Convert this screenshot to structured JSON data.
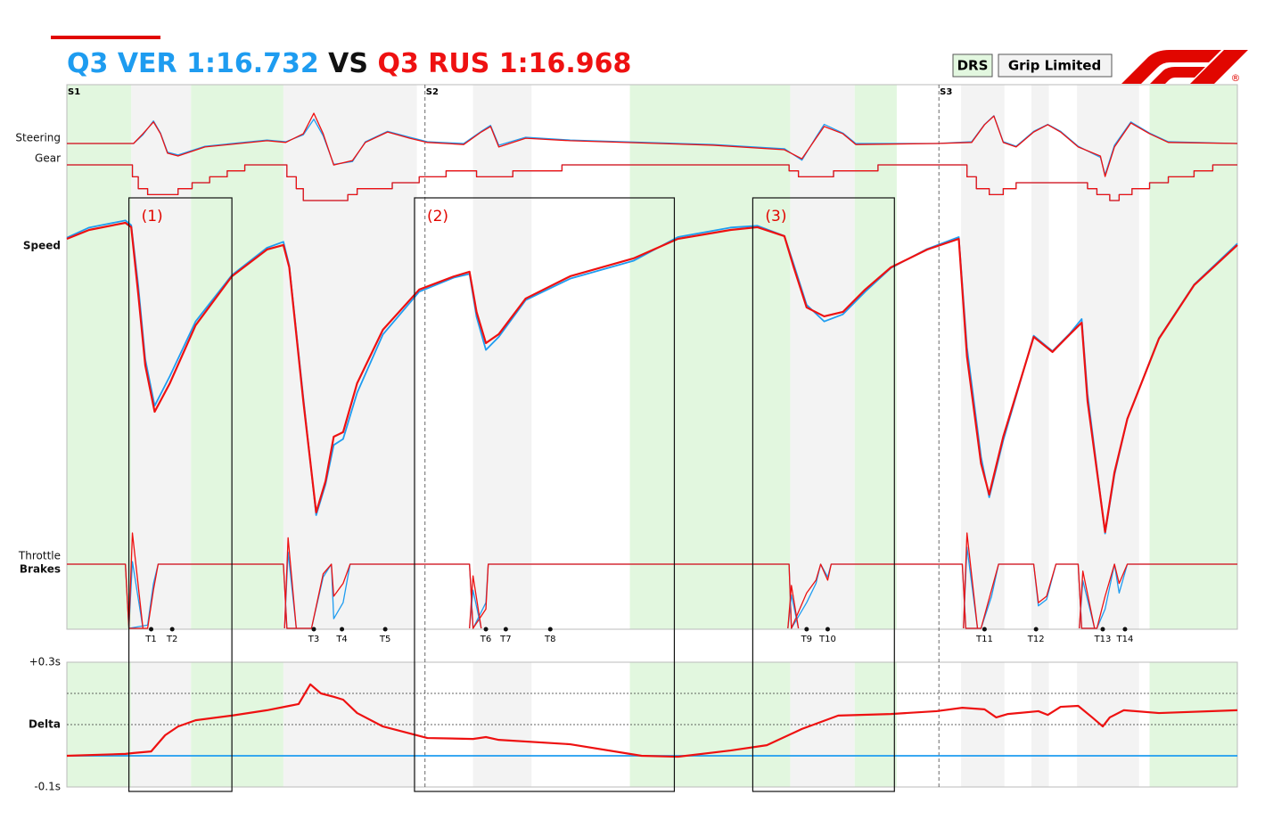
{
  "header": {
    "title": [
      {
        "text": "Q3 VER 1:16.732",
        "color": "#1e9cf0"
      },
      {
        "text": "VS",
        "color": "#111111"
      },
      {
        "text": "Q3 RUS 1:16.968",
        "color": "#ee1111"
      }
    ],
    "legend": [
      {
        "label": "DRS",
        "color": "#e2f7df",
        "zones": [
          [
            0,
            5.5
          ],
          [
            10.6,
            18.5
          ],
          [
            48.1,
            61.8
          ],
          [
            67.3,
            70.9
          ],
          [
            92.5,
            100
          ]
        ]
      },
      {
        "label": "Grip Limited",
        "color": "#f3f3f3",
        "zones": [
          [
            5.5,
            10.6
          ],
          [
            18.5,
            29.9
          ],
          [
            34.7,
            39.7
          ],
          [
            61.8,
            67.3
          ],
          [
            76.4,
            80.1
          ],
          [
            82.4,
            83.9
          ],
          [
            86.3,
            91.6
          ]
        ]
      }
    ],
    "logo_mark": "®"
  },
  "track": {
    "xlim": [
      0,
      100
    ],
    "sectors": [
      {
        "label": "S1",
        "x": 0
      },
      {
        "label": "S2",
        "x": 30.6
      },
      {
        "label": "S3",
        "x": 74.5
      }
    ],
    "turns": [
      {
        "label": "T1",
        "x": 7.2
      },
      {
        "label": "T2",
        "x": 9.0
      },
      {
        "label": "T3",
        "x": 21.1
      },
      {
        "label": "T4",
        "x": 23.5
      },
      {
        "label": "T5",
        "x": 27.2
      },
      {
        "label": "T6",
        "x": 35.8
      },
      {
        "label": "T7",
        "x": 37.5
      },
      {
        "label": "T8",
        "x": 41.3
      },
      {
        "label": "T9",
        "x": 63.2
      },
      {
        "label": "T10",
        "x": 65.0
      },
      {
        "label": "T11",
        "x": 78.4
      },
      {
        "label": "T12",
        "x": 82.8
      },
      {
        "label": "T13",
        "x": 88.5
      },
      {
        "label": "T14",
        "x": 90.4
      }
    ],
    "boxes": [
      {
        "label": "(1)",
        "start": 5.3,
        "end": 14.1
      },
      {
        "label": "(2)",
        "start": 29.7,
        "end": 51.9
      },
      {
        "label": "(3)",
        "start": 58.6,
        "end": 70.7
      }
    ]
  },
  "chart_data": [
    {
      "type": "line",
      "label": "Steering",
      "xlim": [
        0,
        100
      ],
      "ylim": [
        -100,
        100
      ],
      "x": [
        0,
        5.7,
        6.5,
        7.4,
        8.0,
        8.6,
        9.5,
        11.8,
        17.1,
        18.7,
        20.2,
        21.1,
        21.9,
        22.8,
        24.4,
        25.5,
        27.4,
        29.3,
        30.8,
        33.9,
        35.4,
        36.2,
        36.9,
        39.2,
        43.0,
        55.2,
        61.3,
        62.8,
        64.0,
        64.7,
        66.3,
        67.4,
        74.3,
        77.3,
        78.4,
        79.2,
        80.0,
        81.1,
        82.6,
        83.8,
        84.9,
        86.4,
        88.3,
        88.7,
        89.5,
        90.9,
        92.5,
        94.1,
        100
      ],
      "series": [
        {
          "color": "#1e9cf0",
          "values": [
            0,
            0,
            25,
            65,
            30,
            -25,
            -33,
            -8,
            10,
            5,
            25,
            70,
            22,
            -60,
            -52,
            5,
            35,
            18,
            5,
            0,
            35,
            52,
            -5,
            18,
            10,
            -3,
            -15,
            -48,
            18,
            55,
            30,
            0,
            0,
            5,
            55,
            80,
            5,
            -8,
            35,
            55,
            35,
            -8,
            -40,
            -90,
            -5,
            62,
            30,
            5,
            0
          ]
        },
        {
          "color": "#ee1111",
          "values": [
            0,
            0,
            28,
            62,
            28,
            -28,
            -36,
            -10,
            8,
            3,
            28,
            87,
            28,
            -62,
            -49,
            3,
            33,
            15,
            3,
            -3,
            33,
            49,
            -10,
            15,
            8,
            -5,
            -18,
            -44,
            15,
            49,
            28,
            -3,
            0,
            3,
            54,
            79,
            3,
            -10,
            33,
            54,
            33,
            -10,
            -36,
            -95,
            -10,
            59,
            28,
            3,
            0
          ]
        }
      ]
    },
    {
      "type": "step",
      "label": "Gear",
      "xlim": [
        0,
        100
      ],
      "ylim": [
        1,
        8
      ],
      "x": [
        0,
        5.6,
        6.1,
        6.9,
        9.5,
        10.7,
        12.2,
        13.7,
        15.2,
        18.8,
        19.6,
        20.2,
        24.0,
        24.8,
        27.8,
        30.1,
        32.4,
        35.0,
        38.1,
        42.3,
        61.7,
        62.5,
        65.5,
        69.3,
        76.9,
        77.7,
        78.8,
        80.0,
        81.1,
        87.2,
        88.0,
        89.1,
        89.9,
        91.0,
        92.5,
        94.1,
        96.3,
        97.9,
        100
      ],
      "series": [
        {
          "color": "#1e9cf0",
          "values": [
            8,
            6,
            4,
            3,
            4,
            5,
            6,
            7,
            8,
            6,
            4,
            2,
            3,
            4,
            5,
            6,
            7,
            6,
            7,
            8,
            7,
            6,
            7,
            8,
            6,
            4,
            3,
            4,
            5,
            4,
            3,
            2,
            3,
            4,
            5,
            6,
            7,
            8,
            8
          ]
        },
        {
          "color": "#ee1111",
          "values": [
            8,
            6,
            4,
            3,
            4,
            5,
            6,
            7,
            8,
            6,
            4,
            2,
            3,
            4,
            5,
            6,
            7,
            6,
            7,
            8,
            7,
            6,
            7,
            8,
            6,
            4,
            3,
            4,
            5,
            4,
            3,
            2,
            3,
            4,
            5,
            6,
            7,
            8,
            8
          ]
        }
      ]
    },
    {
      "type": "line",
      "label": "Speed",
      "xlim": [
        0,
        100
      ],
      "ylim": [
        50,
        330
      ],
      "x": [
        0,
        1.9,
        5.0,
        5.5,
        6.1,
        6.7,
        7.5,
        8.8,
        11.0,
        14.1,
        17.1,
        18.5,
        19.0,
        20.2,
        21.3,
        22.1,
        22.8,
        23.6,
        24.8,
        27.0,
        30.1,
        33.1,
        34.4,
        35.0,
        35.8,
        36.9,
        39.2,
        43.0,
        48.4,
        52.2,
        56.7,
        59.0,
        61.3,
        62.1,
        63.2,
        64.7,
        66.3,
        68.2,
        70.4,
        73.5,
        76.2,
        76.9,
        78.1,
        78.8,
        80.0,
        82.6,
        84.2,
        85.7,
        86.7,
        87.2,
        88.7,
        89.5,
        90.6,
        93.3,
        96.3,
        100
      ],
      "series": [
        {
          "color": "#1e9cf0",
          "values": [
            302.5,
            311,
            317,
            313,
            262,
            200,
            161,
            186,
            232,
            271,
            294,
            299,
            279,
            168,
            69,
            95,
            128,
            133,
            172,
            221,
            257,
            269,
            272,
            236,
            208,
            219,
            250,
            268,
            283,
            303,
            311,
            312.5,
            304,
            280,
            246,
            232,
            238,
            257,
            277,
            293,
            303,
            210,
            118,
            84,
            132,
            220,
            207,
            222,
            234,
            171,
            53.5,
            103,
            150,
            218,
            263,
            297.5
          ]
        },
        {
          "color": "#ee1111",
          "values": [
            301.5,
            309,
            315,
            311.3,
            255,
            195,
            156,
            180,
            228.8,
            270,
            292.5,
            296.3,
            277.5,
            165,
            71.3,
            97.5,
            135,
            138.8,
            180,
            225,
            258.8,
            270,
            273.8,
            240,
            213.8,
            221.3,
            251.3,
            270,
            285,
            301.5,
            309,
            311.3,
            303.8,
            277.5,
            243.8,
            236.3,
            240,
            258.8,
            277.5,
            292.5,
            301.5,
            202.5,
            112.5,
            86.3,
            135,
            219,
            206.3,
            221.3,
            231,
            165,
            54.8,
            105,
            150,
            217.5,
            262.5,
            296.3
          ]
        }
      ]
    },
    {
      "type": "line",
      "label": "Throttle",
      "xlim": [
        0,
        100
      ],
      "ylim": [
        0,
        100
      ],
      "x": [
        0,
        5.0,
        5.3,
        6.9,
        7.4,
        7.8,
        18.5,
        18.8,
        20.9,
        21.9,
        22.6,
        22.8,
        23.6,
        24.2,
        34.4,
        34.7,
        35.8,
        36.0,
        61.7,
        61.9,
        63.2,
        64.0,
        64.4,
        65.0,
        65.3,
        76.5,
        76.8,
        78.1,
        79.0,
        79.6,
        82.6,
        83.0,
        83.7,
        84.5,
        86.4,
        86.7,
        88.0,
        88.7,
        89.5,
        89.9,
        90.6,
        100
      ],
      "series": [
        {
          "color": "#1e9cf0",
          "values": [
            100,
            100,
            0,
            5,
            70,
            100,
            100,
            0,
            0,
            80,
            100,
            15,
            40,
            100,
            100,
            0,
            40,
            100,
            100,
            0,
            40,
            70,
            100,
            80,
            100,
            100,
            0,
            0,
            50,
            100,
            100,
            35,
            45,
            100,
            100,
            0,
            0,
            30,
            100,
            55,
            100,
            100
          ]
        },
        {
          "color": "#ee1111",
          "values": [
            100,
            100,
            0,
            0,
            60,
            100,
            100,
            0,
            0,
            85,
            100,
            50,
            70,
            100,
            100,
            0,
            30,
            100,
            100,
            0,
            55,
            75,
            100,
            75,
            100,
            100,
            0,
            0,
            60,
            100,
            100,
            40,
            50,
            100,
            100,
            0,
            0,
            50,
            100,
            70,
            100,
            100
          ]
        }
      ]
    },
    {
      "type": "line",
      "label": "Brakes",
      "xlim": [
        0,
        100
      ],
      "ylim": [
        0,
        100
      ],
      "x": [
        5.3,
        5.6,
        6.5,
        12,
        18.6,
        18.9,
        19.6,
        27,
        34.4,
        34.7,
        35.4,
        48,
        61.6,
        61.9,
        62.5,
        70,
        76.6,
        76.9,
        77.8,
        82,
        86.5,
        86.8,
        87.8
      ],
      "series": [
        {
          "color": "#1e9cf0",
          "values": [
            0,
            70,
            0,
            null,
            0,
            80,
            0,
            null,
            0,
            40,
            0,
            null,
            0,
            35,
            0,
            null,
            0,
            85,
            0,
            null,
            0,
            50,
            0
          ]
        },
        {
          "color": "#ee1111",
          "values": [
            0,
            100,
            0,
            null,
            0,
            95,
            0,
            null,
            0,
            55,
            0,
            null,
            0,
            45,
            0,
            null,
            0,
            100,
            0,
            null,
            0,
            60,
            0
          ]
        }
      ]
    },
    {
      "type": "line",
      "label": "Delta",
      "xlim": [
        0,
        100
      ],
      "ylim": [
        -0.1,
        0.3
      ],
      "yticks": [
        {
          "value": 0.3,
          "label": "+0.3s"
        },
        {
          "value": -0.1,
          "label": "-0.1s"
        }
      ],
      "dotted_gridlines": [
        0.1,
        0.2
      ],
      "x": [
        0,
        5.0,
        5.7,
        7.2,
        8.4,
        9.5,
        11.0,
        14.1,
        17.1,
        19.0,
        19.8,
        20.8,
        21.7,
        22.8,
        23.6,
        24.8,
        27.0,
        30.8,
        34.7,
        35.8,
        36.9,
        43.0,
        49.1,
        52.2,
        56.7,
        59.8,
        62.8,
        65.9,
        70.4,
        74.3,
        76.5,
        78.4,
        79.4,
        80.4,
        83.0,
        83.8,
        84.9,
        86.4,
        87.6,
        88.5,
        89.1,
        90.3,
        93.3,
        100
      ],
      "series": [
        {
          "color": "#1e9cf0",
          "values": [
            0,
            0,
            0,
            0,
            0,
            0,
            0,
            0,
            0,
            0,
            0,
            0,
            0,
            0,
            0,
            0,
            0,
            0,
            0,
            0,
            0,
            0,
            0,
            0,
            0,
            0,
            0,
            0,
            0,
            0,
            0,
            0,
            0,
            0,
            0,
            0,
            0,
            0,
            0,
            0,
            0,
            0,
            0,
            0
          ]
        },
        {
          "color": "#ee1111",
          "values": [
            0,
            0.006,
            0.009,
            0.014,
            0.066,
            0.094,
            0.114,
            0.129,
            0.146,
            0.16,
            0.166,
            0.229,
            0.2,
            0.189,
            0.18,
            0.137,
            0.094,
            0.057,
            0.054,
            0.06,
            0.051,
            0.037,
            0,
            -0.003,
            0.017,
            0.034,
            0.086,
            0.129,
            0.134,
            0.143,
            0.154,
            0.149,
            0.123,
            0.134,
            0.143,
            0.131,
            0.157,
            0.16,
            0.123,
            0.094,
            0.123,
            0.146,
            0.137,
            0.146
          ]
        }
      ]
    }
  ]
}
